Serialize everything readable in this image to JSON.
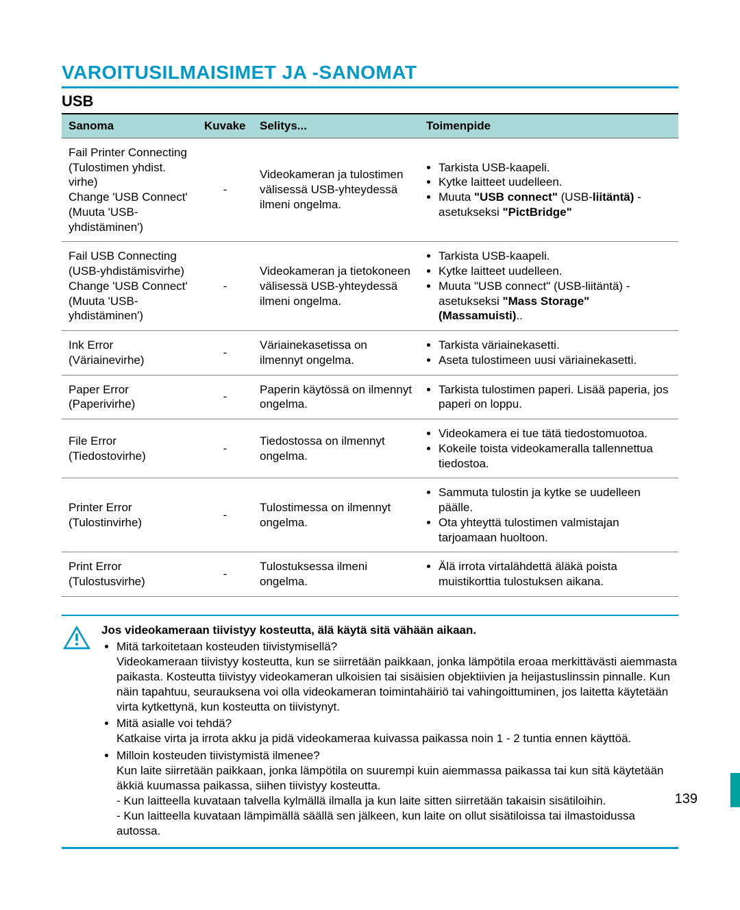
{
  "title": "VAROITUSILMAISIMET JA -SANOMAT",
  "subtitle": "USB",
  "table": {
    "headers": {
      "msg": "Sanoma",
      "icon": "Kuvake",
      "exp": "Selitys...",
      "act": "Toimenpide"
    },
    "rows": [
      {
        "msg": "Fail Printer Connecting (Tulostimen yhdist. virhe)\nChange 'USB Connect' (Muuta 'USB-yhdistäminen')",
        "icon": "-",
        "exp": "Videokameran ja tulostimen välisessä USB-yhteydessä ilmeni ongelma.",
        "acts": [
          "Tarkista USB-kaapeli.",
          "Kytke laitteet uudelleen.",
          "Muuta <b>\"USB connect\"</b> (USB-<b>liitäntä)</b> -asetukseksi <b>\"PictBridge\"</b>"
        ]
      },
      {
        "msg": "Fail USB Connecting (USB-yhdistämisvirhe)\nChange 'USB Connect' (Muuta 'USB-yhdistäminen')",
        "icon": "-",
        "exp": "Videokameran ja tietokoneen välisessä USB-yhteydessä ilmeni ongelma.",
        "acts": [
          "Tarkista USB-kaapeli.",
          "Kytke laitteet uudelleen.",
          "Muuta \"USB connect\" (USB-liitäntä) -asetukseksi <b>\"Mass Storage\" (Massamuisti)</b>.."
        ]
      },
      {
        "msg": "Ink Error (Väriainevirhe)",
        "icon": "-",
        "exp": "Väriainekasetissa on ilmennyt ongelma.",
        "acts": [
          "Tarkista väriainekasetti.",
          "Aseta tulostimeen uusi väriainekasetti."
        ]
      },
      {
        "msg": "Paper Error (Paperivirhe)",
        "icon": "-",
        "exp": "Paperin käytössä on ilmennyt ongelma.",
        "acts": [
          "Tarkista tulostimen paperi. Lisää paperia, jos paperi on loppu."
        ]
      },
      {
        "msg": "File Error (Tiedostovirhe)",
        "icon": "-",
        "exp": "Tiedostossa on ilmennyt ongelma.",
        "acts": [
          "Videokamera ei tue tätä tiedostomuotoa.",
          "Kokeile toista videokameralla tallennettua tiedostoa."
        ]
      },
      {
        "msg": "Printer Error (Tulostinvirhe)",
        "icon": "-",
        "exp": "Tulostimessa on ilmennyt ongelma.",
        "acts": [
          "Sammuta tulostin ja kytke se uudelleen päälle.",
          "Ota yhteyttä tulostimen valmistajan tarjoamaan huoltoon."
        ]
      },
      {
        "msg": "Print Error (Tulostusvirhe)",
        "icon": "-",
        "exp": "Tulostuksessa ilmeni ongelma.",
        "acts": [
          "Älä irrota virtalähdettä äläkä poista muistikorttia tulostuksen aikana."
        ]
      }
    ]
  },
  "warning": {
    "title": "Jos videokameraan tiivistyy kosteutta, älä käytä sitä vähään aikaan.",
    "items": [
      "Mitä tarkoitetaan kosteuden tiivistymisellä?<br>Videokameraan tiivistyy kosteutta, kun se siirretään paikkaan, jonka lämpötila eroaa merkittävästi aiemmasta paikasta. Kosteutta tiivistyy videokameran ulkoisien tai sisäisien objektiivien ja heijastuslinssin pinnalle. Kun näin tapahtuu, seurauksena voi olla videokameran toimintahäiriö tai vahingoittuminen, jos laitetta käytetään virta kytkettynä, kun kosteutta on tiivistynyt.",
      "Mitä asialle voi tehdä?<br>Katkaise virta ja irrota akku ja pidä videokameraa kuivassa paikassa noin 1 - 2 tuntia ennen käyttöä.",
      "Milloin kosteuden tiivistymistä ilmenee?<br>Kun laite siirretään paikkaan, jonka lämpötila on suurempi kuin aiemmassa paikassa tai kun sitä käytetään äkkiä kuumassa paikassa, siihen tiivistyy kosteutta.<br>- Kun laitteella kuvataan talvella kylmällä ilmalla ja kun laite sitten siirretään takaisin sisätiloihin.<br>- Kun laitteella kuvataan lämpimällä säällä sen jälkeen, kun laite on ollut sisätiloissa tai ilmastoidussa autossa."
    ]
  },
  "pageNumber": "139",
  "colors": {
    "accent": "#0099cc",
    "headerBg": "#a8d8d8",
    "tabBg": "#00a0a0"
  }
}
